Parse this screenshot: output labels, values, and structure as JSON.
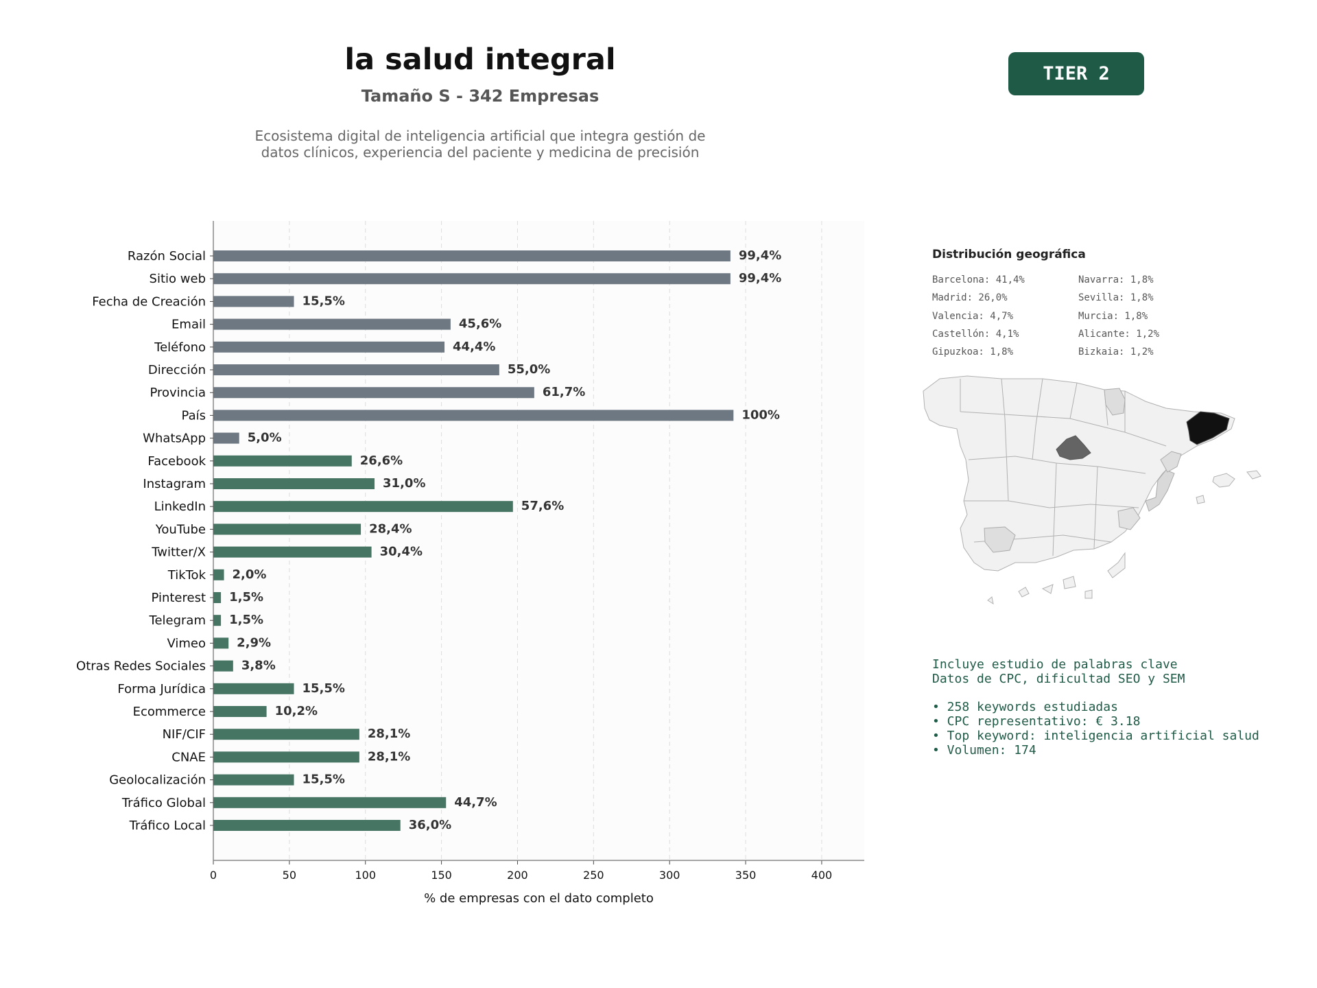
{
  "header": {
    "title": "la salud integral",
    "subtitle": "Tamaño S - 342 Empresas",
    "description": "Ecosistema digital de inteligencia artificial que integra gestión de\ndatos clínicos, experiencia del paciente y medicina de precisión",
    "tier": "TIER 2"
  },
  "chart_data": {
    "type": "bar",
    "orientation": "horizontal",
    "categories": [
      "Razón Social",
      "Sitio web",
      "Fecha de Creación",
      "Email",
      "Teléfono",
      "Dirección",
      "Provincia",
      "País",
      "WhatsApp",
      "Facebook",
      "Instagram",
      "LinkedIn",
      "YouTube",
      "Twitter/X",
      "TikTok",
      "Pinterest",
      "Telegram",
      "Vimeo",
      "Otras Redes Sociales",
      "Forma Jurídica",
      "Ecommerce",
      "NIF/CIF",
      "CNAE",
      "Geolocalización",
      "Tráfico Global",
      "Tráfico Local"
    ],
    "values": [
      340,
      340,
      53,
      156,
      152,
      188,
      211,
      342,
      17,
      91,
      106,
      197,
      97,
      104,
      7,
      5,
      5,
      10,
      13,
      53,
      35,
      96,
      96,
      53,
      153,
      123
    ],
    "labels": [
      "99,4%",
      "99,4%",
      "15,5%",
      "45,6%",
      "44,4%",
      "55,0%",
      "61,7%",
      "100%",
      "5,0%",
      "26,6%",
      "31,0%",
      "57,6%",
      "28,4%",
      "30,4%",
      "2,0%",
      "1,5%",
      "1,5%",
      "2,9%",
      "3,8%",
      "15,5%",
      "10,2%",
      "28,1%",
      "28,1%",
      "15,5%",
      "44,7%",
      "36,0%"
    ],
    "group_split_index": 9,
    "colors": {
      "group1": "#6e7883",
      "group2": "#467563"
    },
    "xlabel": "% de empresas con el dato completo",
    "xlim": [
      0,
      428
    ],
    "xticks": [
      0,
      50,
      100,
      150,
      200,
      250,
      300,
      350,
      400
    ],
    "grid": "x-dashed"
  },
  "geo": {
    "title": "Distribución geográfica",
    "col1": [
      "Barcelona: 41,4%",
      "Madrid: 26,0%",
      "Valencia: 4,7%",
      "Castellón: 4,1%",
      "Gipuzkoa: 1,8%"
    ],
    "col2": [
      "Navarra: 1,8%",
      "Sevilla: 1,8%",
      "Murcia: 1,8%",
      "Alicante: 1,2%",
      "Bizkaia: 1,2%"
    ]
  },
  "info": {
    "line1": "Incluye estudio de palabras clave",
    "line2": "Datos de CPC, dificultad SEO y SEM",
    "bullets": [
      "• 258 keywords estudiadas",
      "• CPC representativo: € 3.18",
      "• Top keyword: inteligencia artificial salud",
      "• Volumen: 174"
    ]
  }
}
